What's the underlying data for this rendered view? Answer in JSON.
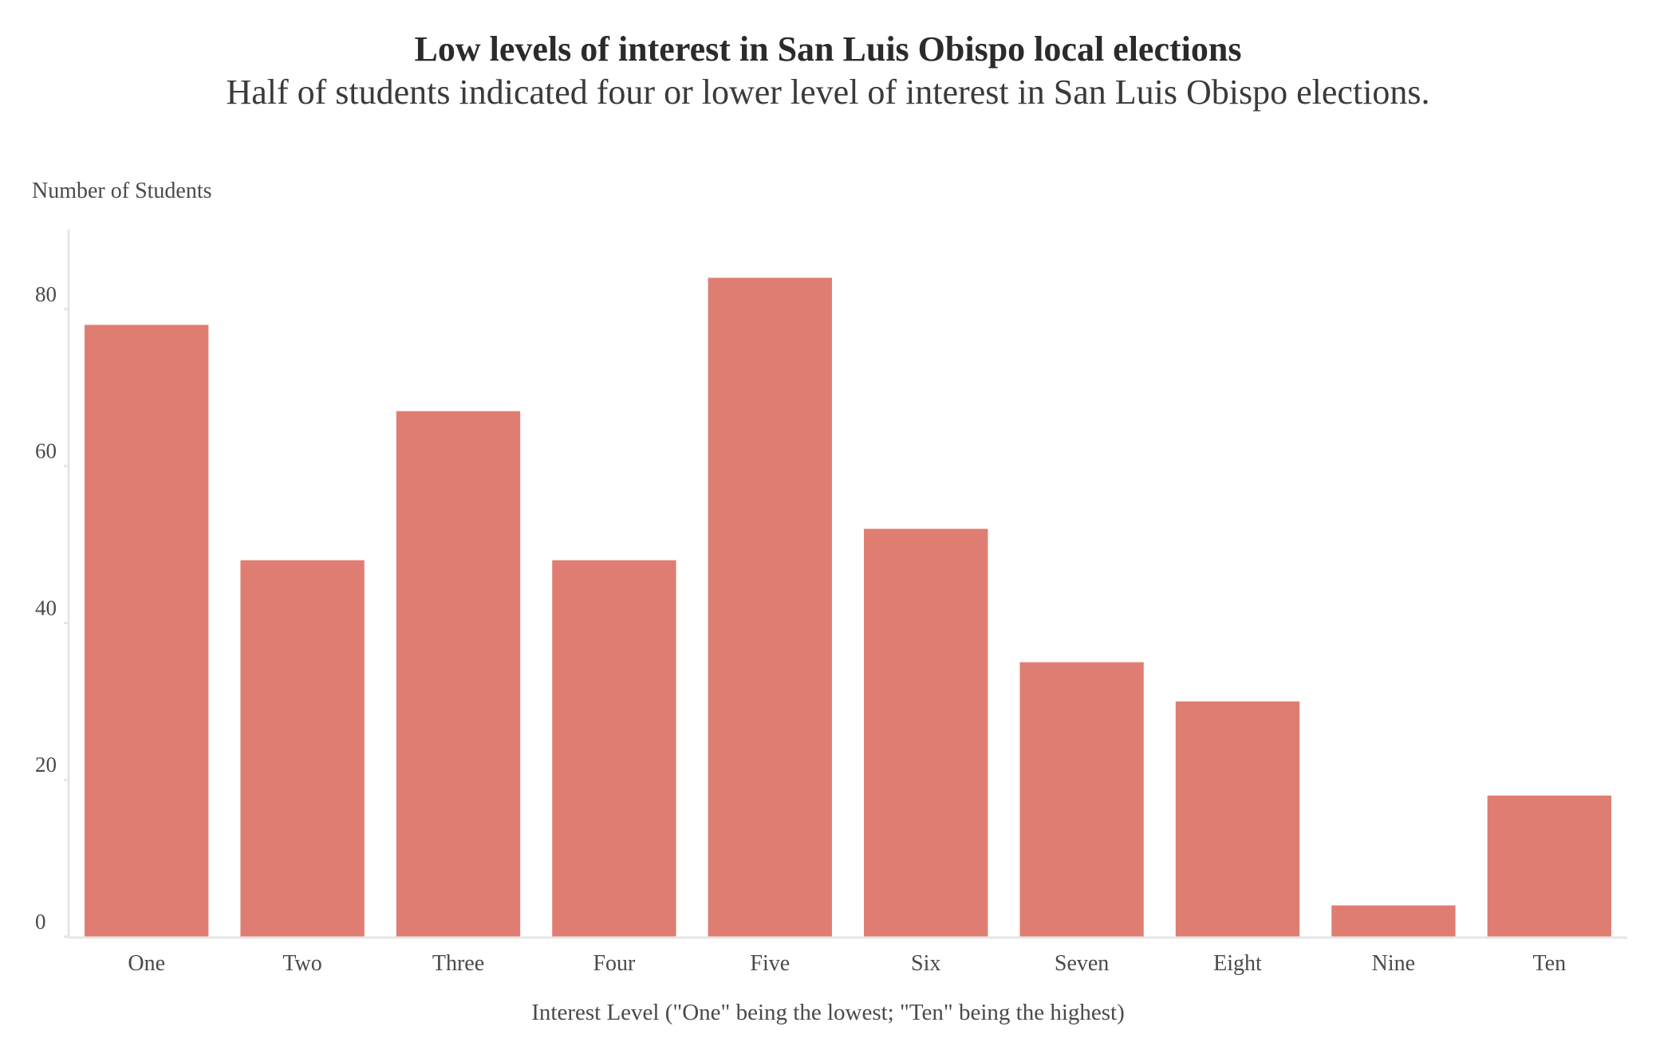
{
  "chart_data": {
    "type": "bar",
    "title": "Low levels of interest in San Luis Obispo local elections",
    "subtitle": "Half of students indicated four or lower level of interest in San Luis Obispo elections.",
    "ylabel": "Number of Students",
    "xlabel": "Interest Level (\"One\" being the lowest; \"Ten\" being the highest)",
    "categories": [
      "One",
      "Two",
      "Three",
      "Four",
      "Five",
      "Six",
      "Seven",
      "Eight",
      "Nine",
      "Ten"
    ],
    "values": [
      78,
      48,
      67,
      48,
      84,
      52,
      35,
      30,
      4,
      18
    ],
    "ylim": [
      0,
      90
    ],
    "yticks": [
      0,
      20,
      40,
      60,
      80
    ],
    "bar_color": "#e07d72",
    "axis_color": "#e6e6e6",
    "grid": false
  }
}
